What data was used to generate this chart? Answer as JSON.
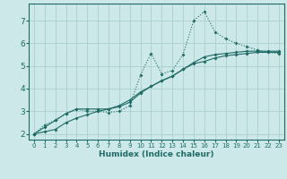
{
  "xlabel": "Humidex (Indice chaleur)",
  "bg_color": "#cce8e8",
  "grid_color": "#aacfcf",
  "line_color": "#1e6b65",
  "xlim": [
    -0.5,
    23.5
  ],
  "ylim": [
    1.75,
    7.75
  ],
  "xticks": [
    0,
    1,
    2,
    3,
    4,
    5,
    6,
    7,
    8,
    9,
    10,
    11,
    12,
    13,
    14,
    15,
    16,
    17,
    18,
    19,
    20,
    21,
    22,
    23
  ],
  "yticks": [
    2,
    3,
    4,
    5,
    6,
    7
  ],
  "line1_x": [
    0,
    1,
    2,
    3,
    4,
    5,
    6,
    7,
    8,
    9,
    10,
    11,
    12,
    13,
    14,
    15,
    16,
    17,
    18,
    19,
    20,
    21,
    22,
    23
  ],
  "line1_y": [
    2.0,
    2.4,
    2.6,
    2.9,
    3.1,
    3.0,
    3.0,
    2.95,
    3.0,
    3.25,
    4.6,
    5.55,
    4.65,
    4.8,
    5.5,
    7.0,
    7.4,
    6.5,
    6.2,
    6.0,
    5.85,
    5.7,
    5.6,
    5.55
  ],
  "line2_x": [
    0,
    1,
    2,
    3,
    4,
    5,
    6,
    7,
    8,
    9,
    10,
    11,
    12,
    13,
    14,
    15,
    16,
    17,
    18,
    19,
    20,
    21,
    22,
    23
  ],
  "line2_y": [
    2.0,
    2.3,
    2.6,
    2.9,
    3.1,
    3.1,
    3.1,
    3.1,
    3.2,
    3.4,
    3.8,
    4.1,
    4.35,
    4.55,
    4.85,
    5.15,
    5.4,
    5.5,
    5.55,
    5.6,
    5.65,
    5.65,
    5.65,
    5.65
  ],
  "line3_x": [
    0,
    1,
    2,
    3,
    4,
    5,
    6,
    7,
    8,
    9,
    10,
    11,
    12,
    13,
    14,
    15,
    16,
    17,
    18,
    19,
    20,
    21,
    22,
    23
  ],
  "line3_y": [
    2.0,
    2.1,
    2.2,
    2.5,
    2.7,
    2.85,
    3.0,
    3.1,
    3.25,
    3.5,
    3.85,
    4.1,
    4.35,
    4.55,
    4.85,
    5.1,
    5.2,
    5.35,
    5.45,
    5.5,
    5.55,
    5.6,
    5.6,
    5.6
  ]
}
